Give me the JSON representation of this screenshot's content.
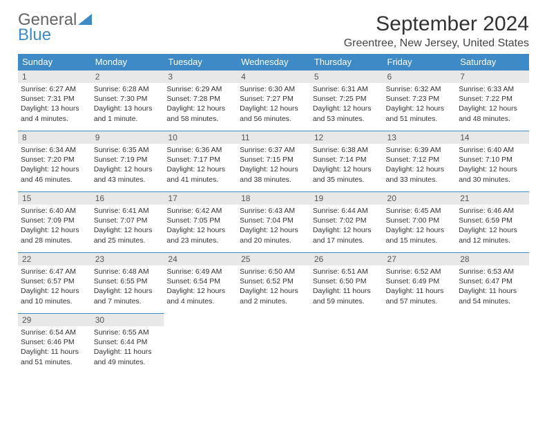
{
  "logo": {
    "general": "General",
    "blue": "Blue"
  },
  "title": "September 2024",
  "location": "Greentree, New Jersey, United States",
  "colors": {
    "header_bg": "#3d8ac7",
    "header_text": "#ffffff",
    "daynum_bg": "#e8e8e8",
    "cell_border": "#3d8ac7",
    "logo_blue": "#3d8ac7",
    "body_bg": "#ffffff"
  },
  "weekdays": [
    "Sunday",
    "Monday",
    "Tuesday",
    "Wednesday",
    "Thursday",
    "Friday",
    "Saturday"
  ],
  "weeks": [
    [
      {
        "day": "1",
        "sunrise": "Sunrise: 6:27 AM",
        "sunset": "Sunset: 7:31 PM",
        "daylight": "Daylight: 13 hours and 4 minutes."
      },
      {
        "day": "2",
        "sunrise": "Sunrise: 6:28 AM",
        "sunset": "Sunset: 7:30 PM",
        "daylight": "Daylight: 13 hours and 1 minute."
      },
      {
        "day": "3",
        "sunrise": "Sunrise: 6:29 AM",
        "sunset": "Sunset: 7:28 PM",
        "daylight": "Daylight: 12 hours and 58 minutes."
      },
      {
        "day": "4",
        "sunrise": "Sunrise: 6:30 AM",
        "sunset": "Sunset: 7:27 PM",
        "daylight": "Daylight: 12 hours and 56 minutes."
      },
      {
        "day": "5",
        "sunrise": "Sunrise: 6:31 AM",
        "sunset": "Sunset: 7:25 PM",
        "daylight": "Daylight: 12 hours and 53 minutes."
      },
      {
        "day": "6",
        "sunrise": "Sunrise: 6:32 AM",
        "sunset": "Sunset: 7:23 PM",
        "daylight": "Daylight: 12 hours and 51 minutes."
      },
      {
        "day": "7",
        "sunrise": "Sunrise: 6:33 AM",
        "sunset": "Sunset: 7:22 PM",
        "daylight": "Daylight: 12 hours and 48 minutes."
      }
    ],
    [
      {
        "day": "8",
        "sunrise": "Sunrise: 6:34 AM",
        "sunset": "Sunset: 7:20 PM",
        "daylight": "Daylight: 12 hours and 46 minutes."
      },
      {
        "day": "9",
        "sunrise": "Sunrise: 6:35 AM",
        "sunset": "Sunset: 7:19 PM",
        "daylight": "Daylight: 12 hours and 43 minutes."
      },
      {
        "day": "10",
        "sunrise": "Sunrise: 6:36 AM",
        "sunset": "Sunset: 7:17 PM",
        "daylight": "Daylight: 12 hours and 41 minutes."
      },
      {
        "day": "11",
        "sunrise": "Sunrise: 6:37 AM",
        "sunset": "Sunset: 7:15 PM",
        "daylight": "Daylight: 12 hours and 38 minutes."
      },
      {
        "day": "12",
        "sunrise": "Sunrise: 6:38 AM",
        "sunset": "Sunset: 7:14 PM",
        "daylight": "Daylight: 12 hours and 35 minutes."
      },
      {
        "day": "13",
        "sunrise": "Sunrise: 6:39 AM",
        "sunset": "Sunset: 7:12 PM",
        "daylight": "Daylight: 12 hours and 33 minutes."
      },
      {
        "day": "14",
        "sunrise": "Sunrise: 6:40 AM",
        "sunset": "Sunset: 7:10 PM",
        "daylight": "Daylight: 12 hours and 30 minutes."
      }
    ],
    [
      {
        "day": "15",
        "sunrise": "Sunrise: 6:40 AM",
        "sunset": "Sunset: 7:09 PM",
        "daylight": "Daylight: 12 hours and 28 minutes."
      },
      {
        "day": "16",
        "sunrise": "Sunrise: 6:41 AM",
        "sunset": "Sunset: 7:07 PM",
        "daylight": "Daylight: 12 hours and 25 minutes."
      },
      {
        "day": "17",
        "sunrise": "Sunrise: 6:42 AM",
        "sunset": "Sunset: 7:05 PM",
        "daylight": "Daylight: 12 hours and 23 minutes."
      },
      {
        "day": "18",
        "sunrise": "Sunrise: 6:43 AM",
        "sunset": "Sunset: 7:04 PM",
        "daylight": "Daylight: 12 hours and 20 minutes."
      },
      {
        "day": "19",
        "sunrise": "Sunrise: 6:44 AM",
        "sunset": "Sunset: 7:02 PM",
        "daylight": "Daylight: 12 hours and 17 minutes."
      },
      {
        "day": "20",
        "sunrise": "Sunrise: 6:45 AM",
        "sunset": "Sunset: 7:00 PM",
        "daylight": "Daylight: 12 hours and 15 minutes."
      },
      {
        "day": "21",
        "sunrise": "Sunrise: 6:46 AM",
        "sunset": "Sunset: 6:59 PM",
        "daylight": "Daylight: 12 hours and 12 minutes."
      }
    ],
    [
      {
        "day": "22",
        "sunrise": "Sunrise: 6:47 AM",
        "sunset": "Sunset: 6:57 PM",
        "daylight": "Daylight: 12 hours and 10 minutes."
      },
      {
        "day": "23",
        "sunrise": "Sunrise: 6:48 AM",
        "sunset": "Sunset: 6:55 PM",
        "daylight": "Daylight: 12 hours and 7 minutes."
      },
      {
        "day": "24",
        "sunrise": "Sunrise: 6:49 AM",
        "sunset": "Sunset: 6:54 PM",
        "daylight": "Daylight: 12 hours and 4 minutes."
      },
      {
        "day": "25",
        "sunrise": "Sunrise: 6:50 AM",
        "sunset": "Sunset: 6:52 PM",
        "daylight": "Daylight: 12 hours and 2 minutes."
      },
      {
        "day": "26",
        "sunrise": "Sunrise: 6:51 AM",
        "sunset": "Sunset: 6:50 PM",
        "daylight": "Daylight: 11 hours and 59 minutes."
      },
      {
        "day": "27",
        "sunrise": "Sunrise: 6:52 AM",
        "sunset": "Sunset: 6:49 PM",
        "daylight": "Daylight: 11 hours and 57 minutes."
      },
      {
        "day": "28",
        "sunrise": "Sunrise: 6:53 AM",
        "sunset": "Sunset: 6:47 PM",
        "daylight": "Daylight: 11 hours and 54 minutes."
      }
    ],
    [
      {
        "day": "29",
        "sunrise": "Sunrise: 6:54 AM",
        "sunset": "Sunset: 6:46 PM",
        "daylight": "Daylight: 11 hours and 51 minutes."
      },
      {
        "day": "30",
        "sunrise": "Sunrise: 6:55 AM",
        "sunset": "Sunset: 6:44 PM",
        "daylight": "Daylight: 11 hours and 49 minutes."
      },
      null,
      null,
      null,
      null,
      null
    ]
  ]
}
